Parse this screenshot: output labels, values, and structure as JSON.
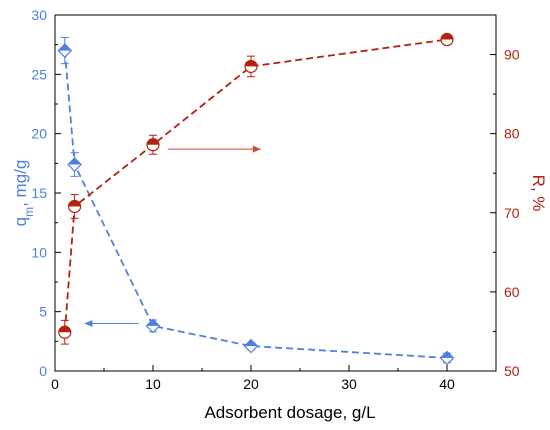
{
  "chart_data": {
    "type": "line",
    "xlabel": "Adsorbent dosage, g/L",
    "ylabel_left": {
      "main": "q",
      "sub": "m",
      "rest": ", mg/g"
    },
    "ylabel_right": "R, %",
    "xlim": [
      0,
      45
    ],
    "ylim_left": [
      0,
      30
    ],
    "ylim_right": [
      50,
      95
    ],
    "x_ticks": [
      0,
      10,
      20,
      30,
      40
    ],
    "y_left_ticks": [
      0,
      5,
      10,
      15,
      20,
      25,
      30
    ],
    "y_right_ticks": [
      50,
      60,
      70,
      80,
      90
    ],
    "grid": false,
    "series": [
      {
        "axis": "left",
        "marker": "diamond",
        "color": "#4f7fe3",
        "points": [
          {
            "x": 1,
            "y": 27.0,
            "err": 1.1
          },
          {
            "x": 2,
            "y": 17.4,
            "err": 1.0
          },
          {
            "x": 10,
            "y": 3.8,
            "err": 0.5
          },
          {
            "x": 20,
            "y": 2.1,
            "err": 0.25
          },
          {
            "x": 40,
            "y": 1.1,
            "err": 0.4
          }
        ]
      },
      {
        "axis": "right",
        "marker": "half-filled-circle",
        "color": "#b3220f",
        "points": [
          {
            "x": 1,
            "y": 54.9,
            "err": 1.5
          },
          {
            "x": 2,
            "y": 70.8,
            "err": 1.5
          },
          {
            "x": 10,
            "y": 78.6,
            "err": 1.2
          },
          {
            "x": 20,
            "y": 88.5,
            "err": 1.3
          },
          {
            "x": 40,
            "y": 91.9,
            "err": 0.5
          }
        ]
      }
    ],
    "annotations": [
      {
        "type": "arrow",
        "direction": "left",
        "points_to": "left axis",
        "color": "#4f7fe3",
        "from": {
          "x": 8.5,
          "y": 4.0
        },
        "to": {
          "x": 3.0,
          "y": 4.0
        }
      },
      {
        "type": "arrow",
        "direction": "right",
        "points_to": "right axis",
        "color": "#d04a3a",
        "from": {
          "x": 11.5,
          "y": 18.7
        },
        "to": {
          "x": 21.0,
          "y": 18.7
        }
      }
    ]
  }
}
